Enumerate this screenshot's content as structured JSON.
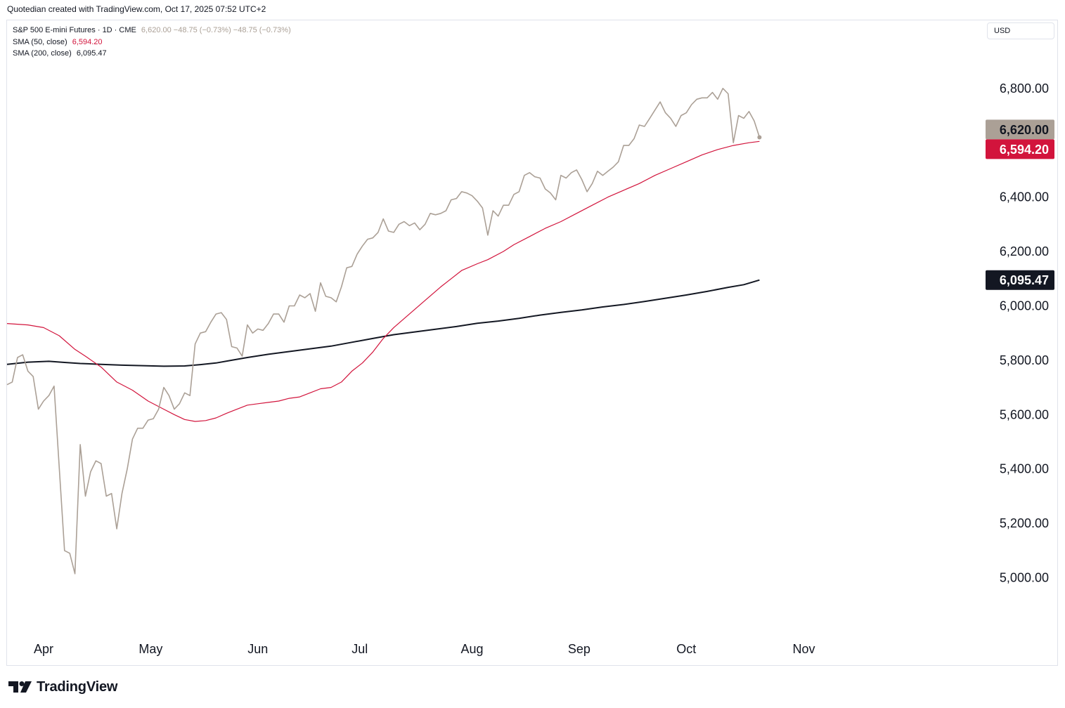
{
  "header": {
    "attribution": "Quotedian created with TradingView.com, Oct 17, 2025 07:52 UTC+2"
  },
  "legend": {
    "symbol_line": {
      "name": "S&P 500 E-mini Futures · 1D · CME",
      "values": "6,620.00 −48.75 (−0.73%) −48.75 (−0.73%)"
    },
    "sma50_line": {
      "name": "SMA (50, close)",
      "value": "6,594.20"
    },
    "sma200_line": {
      "name": "SMA (200, close)",
      "value": "6,095.47"
    }
  },
  "currency_button": {
    "label": "USD"
  },
  "branding": {
    "name": "TradingView"
  },
  "colors": {
    "price": "#aba096",
    "sma50": "#d2143c",
    "sma200": "#131722",
    "price_tag": "#aba096",
    "sma50_tag": "#d2143c",
    "sma200_tag": "#131722"
  },
  "chart_data": {
    "type": "line",
    "x_axis": {
      "ticks": [
        "Apr",
        "May",
        "Jun",
        "Jul",
        "Aug",
        "Sep",
        "Oct",
        "Nov"
      ],
      "tick_days": [
        10,
        51,
        92,
        131,
        174,
        215,
        256,
        301
      ]
    },
    "y_axis": {
      "range": [
        4800,
        7050
      ],
      "ticks": [
        5000,
        5200,
        5400,
        5600,
        5800,
        6000,
        6200,
        6400,
        6800
      ],
      "tick_labels": [
        "5,000.00",
        "5,200.00",
        "5,400.00",
        "5,600.00",
        "5,800.00",
        "6,000.00",
        "6,200.00",
        "6,400.00",
        "6,800.00"
      ]
    },
    "x_domain": [
      -4,
      370
    ],
    "series": [
      {
        "name": "S&P 500 E-mini Futures",
        "tag_label": "6,620.00",
        "points": [
          [
            -4,
            5710
          ],
          [
            -2,
            5720
          ],
          [
            0,
            5810
          ],
          [
            2,
            5820
          ],
          [
            4,
            5760
          ],
          [
            6,
            5740
          ],
          [
            8,
            5620
          ],
          [
            10,
            5650
          ],
          [
            12,
            5670
          ],
          [
            14,
            5705
          ],
          [
            18,
            5100
          ],
          [
            20,
            5090
          ],
          [
            22,
            5015
          ],
          [
            24,
            5490
          ],
          [
            26,
            5300
          ],
          [
            28,
            5390
          ],
          [
            30,
            5430
          ],
          [
            32,
            5420
          ],
          [
            34,
            5300
          ],
          [
            36,
            5310
          ],
          [
            38,
            5180
          ],
          [
            40,
            5310
          ],
          [
            42,
            5400
          ],
          [
            44,
            5510
          ],
          [
            46,
            5550
          ],
          [
            48,
            5550
          ],
          [
            50,
            5580
          ],
          [
            52,
            5585
          ],
          [
            54,
            5620
          ],
          [
            56,
            5700
          ],
          [
            58,
            5670
          ],
          [
            60,
            5620
          ],
          [
            62,
            5640
          ],
          [
            64,
            5680
          ],
          [
            66,
            5670
          ],
          [
            68,
            5860
          ],
          [
            70,
            5900
          ],
          [
            72,
            5905
          ],
          [
            74,
            5940
          ],
          [
            76,
            5970
          ],
          [
            78,
            5975
          ],
          [
            80,
            5950
          ],
          [
            82,
            5850
          ],
          [
            84,
            5845
          ],
          [
            86,
            5815
          ],
          [
            88,
            5930
          ],
          [
            90,
            5900
          ],
          [
            92,
            5915
          ],
          [
            94,
            5910
          ],
          [
            96,
            5935
          ],
          [
            98,
            5970
          ],
          [
            100,
            5970
          ],
          [
            102,
            5940
          ],
          [
            104,
            6000
          ],
          [
            106,
            6000
          ],
          [
            108,
            6040
          ],
          [
            110,
            6030
          ],
          [
            112,
            6045
          ],
          [
            114,
            5980
          ],
          [
            116,
            6085
          ],
          [
            118,
            6035
          ],
          [
            120,
            6030
          ],
          [
            122,
            6015
          ],
          [
            124,
            6070
          ],
          [
            126,
            6140
          ],
          [
            128,
            6145
          ],
          [
            130,
            6190
          ],
          [
            132,
            6220
          ],
          [
            134,
            6245
          ],
          [
            136,
            6250
          ],
          [
            138,
            6270
          ],
          [
            140,
            6320
          ],
          [
            142,
            6275
          ],
          [
            144,
            6270
          ],
          [
            146,
            6300
          ],
          [
            148,
            6310
          ],
          [
            150,
            6295
          ],
          [
            152,
            6305
          ],
          [
            154,
            6280
          ],
          [
            156,
            6300
          ],
          [
            158,
            6340
          ],
          [
            160,
            6335
          ],
          [
            162,
            6340
          ],
          [
            164,
            6350
          ],
          [
            166,
            6390
          ],
          [
            168,
            6395
          ],
          [
            170,
            6420
          ],
          [
            172,
            6415
          ],
          [
            174,
            6405
          ],
          [
            176,
            6385
          ],
          [
            178,
            6360
          ],
          [
            180,
            6260
          ],
          [
            182,
            6350
          ],
          [
            184,
            6330
          ],
          [
            186,
            6370
          ],
          [
            188,
            6370
          ],
          [
            190,
            6410
          ],
          [
            192,
            6420
          ],
          [
            194,
            6480
          ],
          [
            196,
            6490
          ],
          [
            198,
            6475
          ],
          [
            200,
            6470
          ],
          [
            202,
            6430
          ],
          [
            204,
            6415
          ],
          [
            206,
            6390
          ],
          [
            208,
            6480
          ],
          [
            210,
            6470
          ],
          [
            212,
            6490
          ],
          [
            214,
            6500
          ],
          [
            216,
            6465
          ],
          [
            218,
            6420
          ],
          [
            220,
            6450
          ],
          [
            222,
            6495
          ],
          [
            224,
            6480
          ],
          [
            226,
            6495
          ],
          [
            228,
            6510
          ],
          [
            230,
            6530
          ],
          [
            232,
            6590
          ],
          [
            234,
            6590
          ],
          [
            236,
            6615
          ],
          [
            238,
            6665
          ],
          [
            240,
            6660
          ],
          [
            242,
            6690
          ],
          [
            244,
            6720
          ],
          [
            246,
            6750
          ],
          [
            248,
            6710
          ],
          [
            250,
            6690
          ],
          [
            252,
            6660
          ],
          [
            254,
            6700
          ],
          [
            256,
            6710
          ],
          [
            258,
            6740
          ],
          [
            260,
            6760
          ],
          [
            262,
            6765
          ],
          [
            264,
            6765
          ],
          [
            266,
            6785
          ],
          [
            268,
            6760
          ],
          [
            270,
            6800
          ],
          [
            272,
            6780
          ],
          [
            274,
            6600
          ],
          [
            276,
            6700
          ],
          [
            278,
            6690
          ],
          [
            280,
            6715
          ],
          [
            282,
            6680
          ],
          [
            284,
            6620
          ]
        ]
      },
      {
        "name": "SMA (50, close)",
        "tag_label": "6,594.20",
        "points": [
          [
            -4,
            5935
          ],
          [
            4,
            5930
          ],
          [
            10,
            5920
          ],
          [
            16,
            5890
          ],
          [
            22,
            5840
          ],
          [
            26,
            5815
          ],
          [
            32,
            5775
          ],
          [
            38,
            5720
          ],
          [
            44,
            5690
          ],
          [
            50,
            5650
          ],
          [
            56,
            5620
          ],
          [
            60,
            5600
          ],
          [
            64,
            5582
          ],
          [
            68,
            5575
          ],
          [
            72,
            5578
          ],
          [
            76,
            5588
          ],
          [
            80,
            5605
          ],
          [
            84,
            5620
          ],
          [
            88,
            5635
          ],
          [
            92,
            5640
          ],
          [
            96,
            5645
          ],
          [
            100,
            5650
          ],
          [
            104,
            5660
          ],
          [
            108,
            5665
          ],
          [
            112,
            5680
          ],
          [
            116,
            5695
          ],
          [
            120,
            5700
          ],
          [
            124,
            5720
          ],
          [
            128,
            5760
          ],
          [
            132,
            5790
          ],
          [
            136,
            5830
          ],
          [
            140,
            5880
          ],
          [
            144,
            5920
          ],
          [
            150,
            5970
          ],
          [
            156,
            6020
          ],
          [
            162,
            6070
          ],
          [
            166,
            6100
          ],
          [
            170,
            6130
          ],
          [
            176,
            6155
          ],
          [
            180,
            6170
          ],
          [
            186,
            6200
          ],
          [
            190,
            6225
          ],
          [
            196,
            6255
          ],
          [
            202,
            6285
          ],
          [
            208,
            6310
          ],
          [
            214,
            6340
          ],
          [
            220,
            6370
          ],
          [
            226,
            6400
          ],
          [
            232,
            6425
          ],
          [
            238,
            6450
          ],
          [
            244,
            6480
          ],
          [
            250,
            6505
          ],
          [
            256,
            6530
          ],
          [
            262,
            6555
          ],
          [
            268,
            6575
          ],
          [
            274,
            6590
          ],
          [
            280,
            6600
          ],
          [
            284,
            6605
          ]
        ]
      },
      {
        "name": "SMA (200, close)",
        "tag_label": "6,095.47",
        "points": [
          [
            -4,
            5785
          ],
          [
            4,
            5793
          ],
          [
            12,
            5796
          ],
          [
            18,
            5792
          ],
          [
            24,
            5788
          ],
          [
            32,
            5785
          ],
          [
            40,
            5782
          ],
          [
            48,
            5780
          ],
          [
            56,
            5778
          ],
          [
            64,
            5779
          ],
          [
            70,
            5784
          ],
          [
            76,
            5790
          ],
          [
            82,
            5800
          ],
          [
            88,
            5810
          ],
          [
            96,
            5822
          ],
          [
            104,
            5832
          ],
          [
            112,
            5842
          ],
          [
            120,
            5852
          ],
          [
            128,
            5866
          ],
          [
            136,
            5880
          ],
          [
            144,
            5894
          ],
          [
            152,
            5904
          ],
          [
            160,
            5914
          ],
          [
            168,
            5924
          ],
          [
            176,
            5936
          ],
          [
            184,
            5944
          ],
          [
            192,
            5954
          ],
          [
            200,
            5966
          ],
          [
            208,
            5976
          ],
          [
            216,
            5985
          ],
          [
            224,
            5996
          ],
          [
            232,
            6005
          ],
          [
            240,
            6016
          ],
          [
            248,
            6028
          ],
          [
            256,
            6040
          ],
          [
            264,
            6053
          ],
          [
            272,
            6068
          ],
          [
            278,
            6078
          ],
          [
            284,
            6095
          ]
        ]
      }
    ]
  }
}
